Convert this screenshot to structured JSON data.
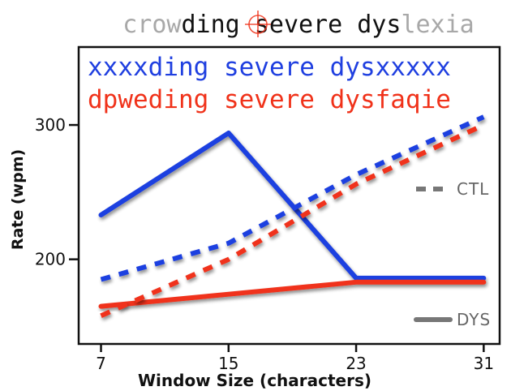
{
  "chart_data": {
    "type": "line",
    "title_segments": [
      {
        "text": "crow",
        "color": "#a8a8a8"
      },
      {
        "text": "ding se",
        "color": "#111111"
      },
      {
        "text": "v",
        "color": "#111111",
        "fixation": true
      },
      {
        "text": "ere dys",
        "color": "#111111"
      },
      {
        "text": "lexia",
        "color": "#a8a8a8"
      }
    ],
    "annotations": [
      {
        "text": "xxxxding severe dysxxxxx",
        "color": "#1f3fe0"
      },
      {
        "text": "dpweding severe dysfaqie",
        "color": "#f0321a"
      }
    ],
    "xlabel": "Window Size (characters)",
    "ylabel": "Rate (wpm)",
    "x": [
      7,
      15,
      23,
      31
    ],
    "xlim": [
      5.6,
      32
    ],
    "ylim": [
      137,
      358
    ],
    "x_ticks": [
      7,
      15,
      23,
      31
    ],
    "y_ticks": [
      200,
      300
    ],
    "series": [
      {
        "color": "#1f3fe0",
        "group": "DYS",
        "style": "solid",
        "values": [
          233,
          294,
          186,
          186
        ]
      },
      {
        "color": "#f0321a",
        "group": "DYS",
        "style": "solid",
        "values": [
          165,
          174,
          183,
          183
        ]
      },
      {
        "color": "#1f3fe0",
        "group": "CTL",
        "style": "dashed",
        "values": [
          185,
          212,
          263,
          306
        ]
      },
      {
        "color": "#f0321a",
        "group": "CTL",
        "style": "dashed",
        "values": [
          158,
          200,
          256,
          300
        ]
      }
    ],
    "legend": {
      "placement": "right",
      "entries": [
        {
          "label": "CTL",
          "style": "dashed",
          "color": "#777777"
        },
        {
          "label": "DYS",
          "style": "solid",
          "color": "#777777"
        }
      ]
    },
    "grid": false
  }
}
